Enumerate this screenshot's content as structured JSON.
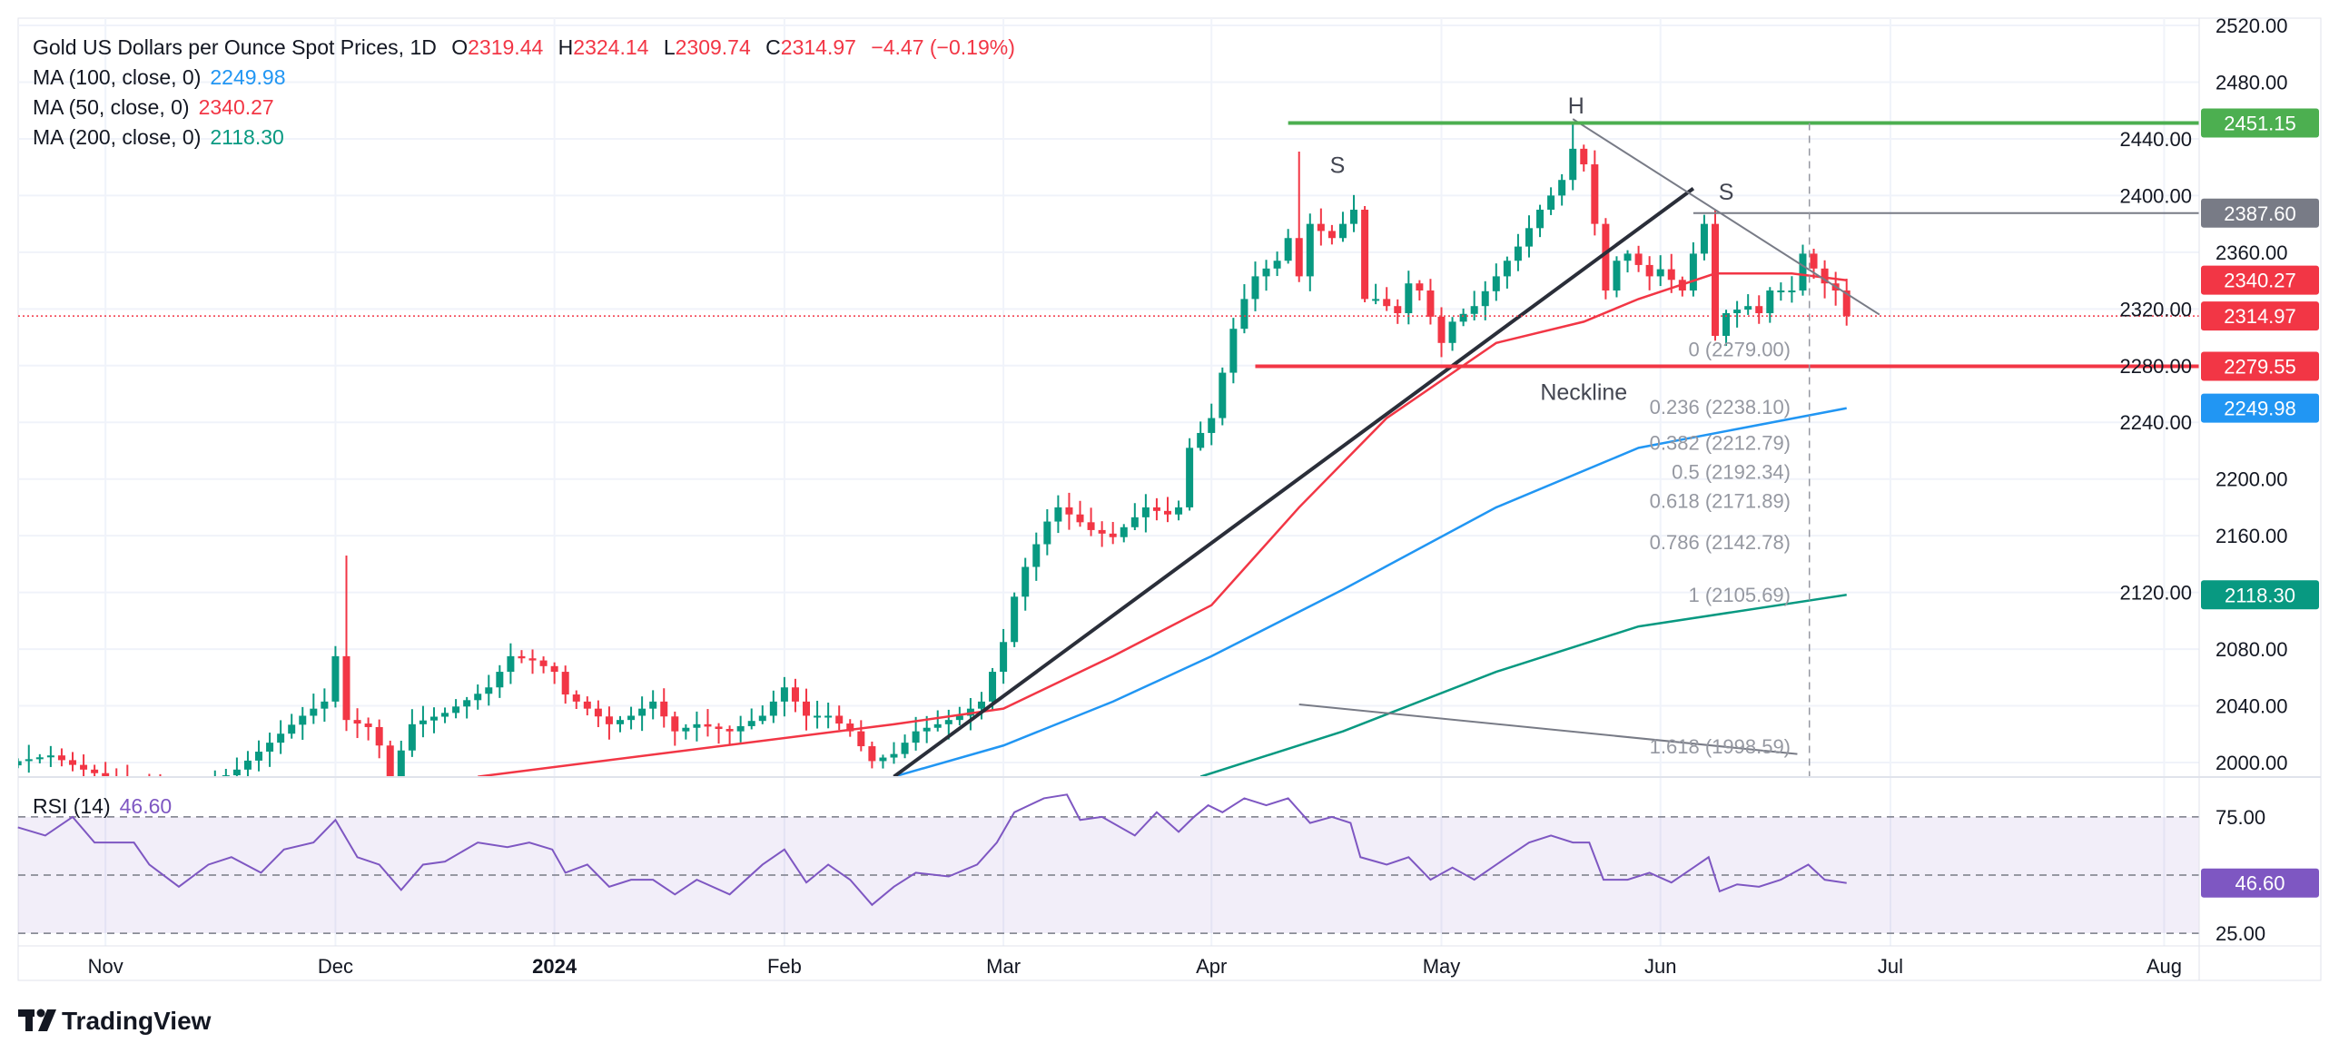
{
  "header": {
    "title": "Gold US Dollars per Ounce Spot Prices, 1D",
    "o_label": "O",
    "o_value": "2319.44",
    "h_label": "H",
    "h_value": "2324.14",
    "l_label": "L",
    "l_value": "2309.74",
    "c_label": "C",
    "c_value": "2314.97",
    "change": "−4.47 (−0.19%)",
    "ma100_label": "MA (100, close, 0)",
    "ma100_value": "2249.98",
    "ma50_label": "MA (50, close, 0)",
    "ma50_value": "2340.27",
    "ma200_label": "MA (200, close, 0)",
    "ma200_value": "2118.30"
  },
  "rsi_header": {
    "label": "RSI (14)",
    "value": "46.60"
  },
  "logo": "TradingView",
  "colors": {
    "up": "#089981",
    "down": "#f23645",
    "ma50": "#f23645",
    "ma100": "#2196f3",
    "ma200": "#089981",
    "rsi": "#7e57c2",
    "h_line": "#4caf50",
    "s_line": "#787b86"
  },
  "chart_data": {
    "type": "candlestick",
    "title": "Gold US Dollars per Ounce Spot Prices, 1D",
    "ylim": [
      1995,
      2525
    ],
    "y_ticks": [
      "2000.00",
      "2040.00",
      "2080.00",
      "2120.00",
      "2160.00",
      "2200.00",
      "2240.00",
      "2280.00",
      "2320.00",
      "2360.00",
      "2400.00",
      "2440.00",
      "2480.00",
      "2520.00"
    ],
    "x_ticks": [
      {
        "label": "Nov",
        "bar": 8
      },
      {
        "label": "Dec",
        "bar": 29
      },
      {
        "label": "2024",
        "bar": 49,
        "bold": true
      },
      {
        "label": "Feb",
        "bar": 70
      },
      {
        "label": "Mar",
        "bar": 90
      },
      {
        "label": "Apr",
        "bar": 109
      },
      {
        "label": "May",
        "bar": 130
      },
      {
        "label": "Jun",
        "bar": 150
      },
      {
        "label": "Jul",
        "bar": 171
      },
      {
        "label": "Aug",
        "bar": 196
      }
    ],
    "close_anchors": [
      [
        0,
        2001
      ],
      [
        3,
        2005
      ],
      [
        6,
        1995
      ],
      [
        10,
        1985
      ],
      [
        15,
        1975
      ],
      [
        20,
        1995
      ],
      [
        26,
        2033
      ],
      [
        28,
        2043
      ],
      [
        29,
        2075
      ],
      [
        30,
        2030
      ],
      [
        32,
        2025
      ],
      [
        33,
        2012
      ],
      [
        34,
        1990
      ],
      [
        36,
        2027
      ],
      [
        39,
        2035
      ],
      [
        43,
        2053
      ],
      [
        45,
        2075
      ],
      [
        47,
        2072
      ],
      [
        49,
        2064
      ],
      [
        50,
        2048
      ],
      [
        52,
        2038
      ],
      [
        54,
        2027
      ],
      [
        56,
        2033
      ],
      [
        58,
        2043
      ],
      [
        60,
        2022
      ],
      [
        62,
        2027
      ],
      [
        65,
        2022
      ],
      [
        68,
        2033
      ],
      [
        70,
        2053
      ],
      [
        72,
        2033
      ],
      [
        74,
        2033
      ],
      [
        76,
        2022
      ],
      [
        78,
        2001
      ],
      [
        80,
        2006
      ],
      [
        82,
        2022
      ],
      [
        84,
        2027
      ],
      [
        86,
        2033
      ],
      [
        88,
        2043
      ],
      [
        90,
        2085
      ],
      [
        91,
        2117
      ],
      [
        92,
        2138
      ],
      [
        94,
        2170
      ],
      [
        95,
        2180
      ],
      [
        96,
        2175
      ],
      [
        98,
        2164
      ],
      [
        100,
        2159
      ],
      [
        103,
        2180
      ],
      [
        105,
        2175
      ],
      [
        106,
        2180
      ],
      [
        107,
        2222
      ],
      [
        109,
        2243
      ],
      [
        110,
        2275
      ],
      [
        111,
        2306
      ],
      [
        112,
        2327
      ],
      [
        113,
        2343
      ],
      [
        115,
        2354
      ],
      [
        116,
        2370
      ],
      [
        117,
        2343
      ],
      [
        118,
        2380
      ],
      [
        120,
        2370
      ],
      [
        122,
        2390
      ],
      [
        123,
        2327
      ],
      [
        124,
        2327
      ],
      [
        126,
        2317
      ],
      [
        127,
        2338
      ],
      [
        128,
        2333
      ],
      [
        130,
        2296
      ],
      [
        131,
        2311
      ],
      [
        133,
        2322
      ],
      [
        135,
        2343
      ],
      [
        136,
        2354
      ],
      [
        137,
        2364
      ],
      [
        139,
        2390
      ],
      [
        140,
        2400
      ],
      [
        141,
        2411
      ],
      [
        142,
        2433
      ],
      [
        143,
        2422
      ],
      [
        144,
        2380
      ],
      [
        145,
        2333
      ],
      [
        146,
        2354
      ],
      [
        147,
        2359
      ],
      [
        149,
        2343
      ],
      [
        150,
        2348
      ],
      [
        152,
        2333
      ],
      [
        153,
        2359
      ],
      [
        154,
        2380
      ],
      [
        155,
        2301
      ],
      [
        156,
        2317
      ],
      [
        158,
        2322
      ],
      [
        159,
        2317
      ],
      [
        160,
        2333
      ],
      [
        162,
        2333
      ],
      [
        163,
        2359
      ],
      [
        165,
        2338
      ],
      [
        166,
        2333
      ],
      [
        167,
        2315
      ]
    ],
    "wick_highs": [
      [
        30,
        2146
      ],
      [
        117,
        2431
      ],
      [
        142,
        2450
      ]
    ],
    "last_bar": 167,
    "ma50": [
      [
        42,
        1990
      ],
      [
        80,
        2027
      ],
      [
        90,
        2038
      ],
      [
        100,
        2075
      ],
      [
        109,
        2111
      ],
      [
        117,
        2180
      ],
      [
        125,
        2243
      ],
      [
        135,
        2296
      ],
      [
        143,
        2311
      ],
      [
        148,
        2327
      ],
      [
        155,
        2345
      ],
      [
        162,
        2345
      ],
      [
        167,
        2340.27
      ]
    ],
    "ma100": [
      [
        80,
        1990
      ],
      [
        90,
        2012
      ],
      [
        100,
        2043
      ],
      [
        109,
        2075
      ],
      [
        121,
        2122
      ],
      [
        135,
        2180
      ],
      [
        148,
        2222
      ],
      [
        167,
        2249.98
      ]
    ],
    "ma200": [
      [
        108,
        1990
      ],
      [
        121,
        2022
      ],
      [
        135,
        2064
      ],
      [
        148,
        2096
      ],
      [
        167,
        2118.3
      ]
    ],
    "lines": {
      "uptrend": [
        [
          80,
          1990
        ],
        [
          153,
          2405
        ]
      ],
      "head_trend": [
        [
          142,
          2454
        ],
        [
          170,
          2316
        ]
      ],
      "lower_trend": [
        [
          117,
          2041
        ],
        [
          162.5,
          2006
        ]
      ],
      "head_level": {
        "price": 2451.15,
        "from_bar": 116
      },
      "shoulder_level": {
        "price": 2387.6,
        "from_bar": 153
      },
      "neckline": {
        "price": 2279.55,
        "from_bar": 113
      },
      "fib_vertical_bar": 163.6
    },
    "annotations": [
      {
        "text": "H",
        "bar": 142.3,
        "price": 2458
      },
      {
        "text": "S",
        "bar": 120.5,
        "price": 2416
      },
      {
        "text": "S",
        "bar": 156,
        "price": 2397
      },
      {
        "text": "Neckline",
        "bar": 143,
        "price": 2256
      }
    ],
    "fib_levels": [
      {
        "label": "0 (2279.00)",
        "price": 2279.0
      },
      {
        "label": "0.236 (2238.10)",
        "price": 2238.1
      },
      {
        "label": "0.382 (2212.79)",
        "price": 2212.79
      },
      {
        "label": "0.5 (2192.34)",
        "price": 2192.34
      },
      {
        "label": "0.618 (2171.89)",
        "price": 2171.89
      },
      {
        "label": "0.786 (2142.78)",
        "price": 2142.78
      },
      {
        "label": "1 (2105.69)",
        "price": 2105.69
      },
      {
        "label": "1.618 (1998.59)",
        "price": 1998.59
      }
    ],
    "price_badges": [
      {
        "text": "2451.15",
        "price": 2451.15,
        "color": "#4caf50"
      },
      {
        "text": "2387.60",
        "price": 2387.6,
        "color": "#787b86"
      },
      {
        "text": "2340.27",
        "price": 2340.27,
        "color": "#f23645"
      },
      {
        "text": "2314.97",
        "price": 2314.97,
        "color": "#f23645"
      },
      {
        "text": "2279.55",
        "price": 2279.55,
        "color": "#f23645"
      },
      {
        "text": "2249.98",
        "price": 2249.98,
        "color": "#2196f3"
      },
      {
        "text": "2118.30",
        "price": 2118.3,
        "color": "#089981"
      }
    ],
    "last_close": 2314.97,
    "rsi": {
      "label": "RSI (14)",
      "levels": [
        75,
        50,
        25
      ],
      "y_ticks": [
        "75.00",
        "25.00"
      ],
      "badge": "46.60",
      "values": [
        [
          0,
          70.5
        ],
        [
          2.5,
          67
        ],
        [
          5,
          75
        ],
        [
          7,
          64
        ],
        [
          10.6,
          64
        ],
        [
          12,
          54.5
        ],
        [
          14.7,
          45
        ],
        [
          17.4,
          54.5
        ],
        [
          19.5,
          57.7
        ],
        [
          22.2,
          51
        ],
        [
          24.3,
          61
        ],
        [
          27,
          64
        ],
        [
          29,
          73.7
        ],
        [
          31,
          57.7
        ],
        [
          33,
          54.5
        ],
        [
          35,
          43.6
        ],
        [
          37,
          54.5
        ],
        [
          39,
          55.8
        ],
        [
          42,
          64
        ],
        [
          44.7,
          62
        ],
        [
          46.7,
          64
        ],
        [
          48.8,
          61
        ],
        [
          50,
          51
        ],
        [
          52,
          54.5
        ],
        [
          54,
          45
        ],
        [
          56,
          48
        ],
        [
          58,
          48
        ],
        [
          60,
          41.7
        ],
        [
          62,
          48
        ],
        [
          65,
          41.7
        ],
        [
          68,
          54.5
        ],
        [
          70,
          61
        ],
        [
          72,
          46.8
        ],
        [
          74,
          54.5
        ],
        [
          76,
          48
        ],
        [
          78,
          37.2
        ],
        [
          80,
          45
        ],
        [
          82,
          51
        ],
        [
          85,
          49.4
        ],
        [
          87.6,
          54.5
        ],
        [
          89.4,
          64
        ],
        [
          91,
          77
        ],
        [
          93.7,
          83
        ],
        [
          95.8,
          84.6
        ],
        [
          97,
          73.7
        ],
        [
          99,
          75
        ],
        [
          102,
          67
        ],
        [
          104,
          77
        ],
        [
          106,
          68.6
        ],
        [
          107.4,
          75
        ],
        [
          108.7,
          80
        ],
        [
          110,
          77
        ],
        [
          112,
          83
        ],
        [
          114,
          80
        ],
        [
          116,
          83
        ],
        [
          118,
          72.4
        ],
        [
          120,
          75
        ],
        [
          121.7,
          72.4
        ],
        [
          122.6,
          57.7
        ],
        [
          125,
          54.5
        ],
        [
          127,
          57.7
        ],
        [
          129,
          48
        ],
        [
          131,
          53.2
        ],
        [
          133,
          48
        ],
        [
          136,
          57.7
        ],
        [
          138,
          64
        ],
        [
          140,
          67
        ],
        [
          142,
          64
        ],
        [
          143.5,
          64
        ],
        [
          144.8,
          48
        ],
        [
          147,
          48
        ],
        [
          149,
          51
        ],
        [
          151,
          46.8
        ],
        [
          153,
          53.2
        ],
        [
          154.4,
          57.7
        ],
        [
          155.4,
          43
        ],
        [
          157,
          46
        ],
        [
          159,
          45
        ],
        [
          161,
          48
        ],
        [
          163.5,
          54.5
        ],
        [
          165,
          48
        ],
        [
          167,
          46.6
        ]
      ]
    }
  }
}
